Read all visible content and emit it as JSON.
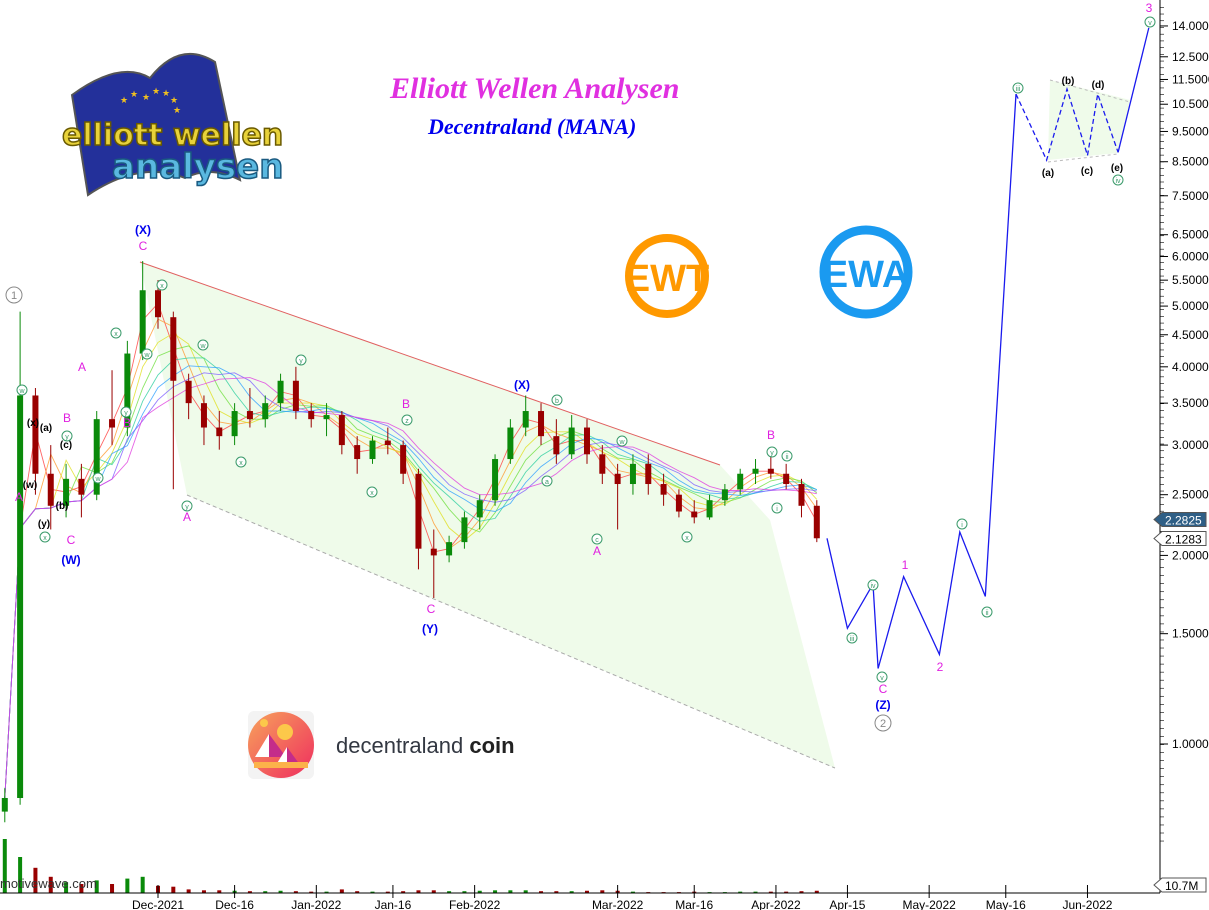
{
  "header": {
    "title": "Elliott Wellen Analysen",
    "subtitle": "Decentraland (MANA)"
  },
  "logos": {
    "brand_logo": "elliott wellen analysen",
    "ewt": "EWT",
    "ewa": "EWA",
    "coin_logo_word1": "decentraland",
    "coin_logo_word2": "coin",
    "watermark": "motivewave.com"
  },
  "colors": {
    "up_candle": "#0a8a0a",
    "down_candle": "#990000",
    "forecast": "#1a1aee",
    "channel_upper": "#e06060",
    "channel_fill": "#effbea",
    "wave_minor": "#e020e0",
    "wave_major": "#0000ee",
    "wave_sub": "#3a9a6a",
    "ewt": "#ff9900",
    "ewa": "#1a9af0"
  },
  "chart_data": {
    "type": "candlestick",
    "title": "Decentraland (MANA)",
    "y_scale": "log",
    "ylim": [
      0.7,
      15
    ],
    "y_ticks": [
      "14.0000",
      "12.5000",
      "11.5000",
      "10.5000",
      "9.5000",
      "8.5000",
      "7.5000",
      "6.5000",
      "6.0000",
      "5.5000",
      "5.0000",
      "4.5000",
      "4.0000",
      "3.5000",
      "3.0000",
      "2.5000",
      "2.0000",
      "1.5000",
      "1.0000"
    ],
    "x_ticks": [
      {
        "label": "Dec-2021",
        "date": "2021-12-01"
      },
      {
        "label": "Dec-16",
        "date": "2021-12-16"
      },
      {
        "label": "Jan-2022",
        "date": "2022-01-01"
      },
      {
        "label": "Jan-16",
        "date": "2022-01-16"
      },
      {
        "label": "Feb-2022",
        "date": "2022-02-01"
      },
      {
        "label": "Mar-2022",
        "date": "2022-03-01"
      },
      {
        "label": "Mar-16",
        "date": "2022-03-16"
      },
      {
        "label": "Apr-2022",
        "date": "2022-04-01"
      },
      {
        "label": "Apr-15",
        "date": "2022-04-15"
      },
      {
        "label": "May-2022",
        "date": "2022-05-01"
      },
      {
        "label": "May-16",
        "date": "2022-05-16"
      },
      {
        "label": "Jun-2022",
        "date": "2022-06-01"
      }
    ],
    "price_tags": {
      "last": "2.2825",
      "reference": "2.1283",
      "volume": "10.7M"
    },
    "candles": [
      [
        "2021-11-01",
        0.78,
        0.85,
        0.75,
        0.82,
        60
      ],
      [
        "2021-11-04",
        0.82,
        4.9,
        0.8,
        3.6,
        40
      ],
      [
        "2021-11-07",
        3.6,
        3.7,
        2.5,
        2.7,
        28
      ],
      [
        "2021-11-10",
        2.7,
        3.0,
        2.2,
        2.4,
        18
      ],
      [
        "2021-11-13",
        2.4,
        2.8,
        2.3,
        2.65,
        12
      ],
      [
        "2021-11-16",
        2.65,
        2.8,
        2.3,
        2.5,
        10
      ],
      [
        "2021-11-19",
        2.5,
        3.4,
        2.45,
        3.3,
        14
      ],
      [
        "2021-11-22",
        3.3,
        3.95,
        3.0,
        3.2,
        10
      ],
      [
        "2021-11-25",
        3.2,
        4.4,
        3.1,
        4.2,
        16
      ],
      [
        "2021-11-28",
        4.2,
        5.9,
        4.1,
        5.3,
        18
      ],
      [
        "2021-12-01",
        5.3,
        5.5,
        4.6,
        4.8,
        8
      ],
      [
        "2021-12-04",
        4.8,
        4.9,
        2.55,
        3.8,
        7
      ],
      [
        "2021-12-07",
        3.8,
        3.9,
        3.3,
        3.5,
        4
      ],
      [
        "2021-12-10",
        3.5,
        3.6,
        3.0,
        3.2,
        3
      ],
      [
        "2021-12-13",
        3.2,
        3.4,
        2.95,
        3.1,
        3
      ],
      [
        "2021-12-16",
        3.1,
        3.5,
        3.0,
        3.4,
        2.5
      ],
      [
        "2021-12-19",
        3.4,
        3.7,
        3.2,
        3.3,
        2
      ],
      [
        "2021-12-22",
        3.3,
        3.6,
        3.2,
        3.5,
        2
      ],
      [
        "2021-12-25",
        3.5,
        3.9,
        3.4,
        3.8,
        2.5
      ],
      [
        "2021-12-28",
        3.8,
        4.0,
        3.3,
        3.4,
        2
      ],
      [
        "2021-12-31",
        3.4,
        3.5,
        3.2,
        3.3,
        1.5
      ],
      [
        "2022-01-03",
        3.3,
        3.5,
        3.1,
        3.35,
        1.5
      ],
      [
        "2022-01-06",
        3.35,
        3.4,
        2.9,
        3.0,
        4
      ],
      [
        "2022-01-09",
        3.0,
        3.1,
        2.7,
        2.85,
        2
      ],
      [
        "2022-01-12",
        2.85,
        3.1,
        2.8,
        3.05,
        1.5
      ],
      [
        "2022-01-15",
        3.05,
        3.2,
        2.9,
        3.0,
        1.5
      ],
      [
        "2022-01-18",
        3.0,
        3.05,
        2.6,
        2.7,
        2
      ],
      [
        "2022-01-21",
        2.7,
        2.75,
        1.9,
        2.05,
        3
      ],
      [
        "2022-01-24",
        2.05,
        2.2,
        1.71,
        2.0,
        3
      ],
      [
        "2022-01-27",
        2.0,
        2.15,
        1.95,
        2.1,
        2
      ],
      [
        "2022-01-30",
        2.1,
        2.35,
        2.05,
        2.3,
        2
      ],
      [
        "2022-02-02",
        2.3,
        2.5,
        2.2,
        2.45,
        2.5
      ],
      [
        "2022-02-05",
        2.45,
        2.9,
        2.4,
        2.85,
        3
      ],
      [
        "2022-02-08",
        2.85,
        3.3,
        2.8,
        3.2,
        3
      ],
      [
        "2022-02-11",
        3.2,
        3.6,
        3.1,
        3.4,
        3
      ],
      [
        "2022-02-14",
        3.4,
        3.5,
        3.0,
        3.1,
        2
      ],
      [
        "2022-02-17",
        3.1,
        3.3,
        2.8,
        2.9,
        2
      ],
      [
        "2022-02-20",
        2.9,
        3.35,
        2.85,
        3.2,
        2
      ],
      [
        "2022-02-23",
        3.2,
        3.3,
        2.8,
        2.9,
        2.5
      ],
      [
        "2022-02-26",
        2.9,
        3.0,
        2.6,
        2.7,
        3
      ],
      [
        "2022-03-01",
        2.7,
        2.8,
        2.2,
        2.6,
        2.5
      ],
      [
        "2022-03-04",
        2.6,
        2.9,
        2.5,
        2.8,
        1.5
      ],
      [
        "2022-03-07",
        2.8,
        2.9,
        2.5,
        2.6,
        1
      ],
      [
        "2022-03-10",
        2.6,
        2.7,
        2.4,
        2.5,
        1
      ],
      [
        "2022-03-13",
        2.5,
        2.55,
        2.3,
        2.35,
        1
      ],
      [
        "2022-03-16",
        2.35,
        2.45,
        2.25,
        2.3,
        1.5
      ],
      [
        "2022-03-19",
        2.3,
        2.5,
        2.28,
        2.45,
        1
      ],
      [
        "2022-03-22",
        2.45,
        2.6,
        2.4,
        2.55,
        1
      ],
      [
        "2022-03-25",
        2.55,
        2.75,
        2.5,
        2.7,
        1.5
      ],
      [
        "2022-03-28",
        2.7,
        2.85,
        2.6,
        2.75,
        1.5
      ],
      [
        "2022-03-31",
        2.75,
        2.9,
        2.65,
        2.7,
        1.5
      ],
      [
        "2022-04-03",
        2.7,
        2.8,
        2.55,
        2.6,
        1.5
      ],
      [
        "2022-04-06",
        2.6,
        2.65,
        2.3,
        2.4,
        2
      ],
      [
        "2022-04-09",
        2.4,
        2.45,
        2.1,
        2.13,
        2.5
      ]
    ],
    "forecast": {
      "solid": [
        [
          "2022-04-11",
          2.13
        ],
        [
          "2022-04-15",
          1.53
        ],
        [
          "2022-04-20",
          1.8
        ],
        [
          "2022-04-21",
          1.32
        ],
        [
          "2022-04-26",
          1.85
        ],
        [
          "2022-05-03",
          1.39
        ],
        [
          "2022-05-07",
          2.18
        ],
        [
          "2022-05-12",
          1.72
        ],
        [
          "2022-05-18",
          10.9
        ]
      ],
      "dashed": [
        [
          "2022-05-18",
          10.9
        ],
        [
          "2022-05-24",
          8.55
        ],
        [
          "2022-05-28",
          11.1
        ],
        [
          "2022-06-01",
          8.7
        ],
        [
          "2022-06-03",
          10.9
        ],
        [
          "2022-06-07",
          8.8
        ]
      ],
      "final": [
        [
          "2022-06-07",
          8.8
        ],
        [
          "2022-06-13",
          13.9
        ]
      ]
    },
    "annotations": [
      {
        "text": "1",
        "kind": "grey-circle"
      },
      {
        "text": "(X)",
        "kind": "major"
      },
      {
        "text": "C",
        "kind": "minor"
      },
      {
        "text": "A",
        "kind": "minor"
      },
      {
        "text": "B",
        "kind": "minor"
      },
      {
        "text": "B",
        "kind": "minor"
      },
      {
        "text": "A",
        "kind": "minor"
      },
      {
        "text": "C",
        "kind": "minor"
      },
      {
        "text": "(W)",
        "kind": "major"
      },
      {
        "text": "(x)",
        "kind": "black"
      },
      {
        "text": "(a)",
        "kind": "black"
      },
      {
        "text": "(w)",
        "kind": "black"
      },
      {
        "text": "(c)",
        "kind": "black"
      },
      {
        "text": "(b)",
        "kind": "black"
      },
      {
        "text": "(y)",
        "kind": "black"
      },
      {
        "text": "w",
        "kind": "sub"
      },
      {
        "text": "x",
        "kind": "sub"
      },
      {
        "text": "y",
        "kind": "sub"
      },
      {
        "text": "w",
        "kind": "sub"
      },
      {
        "text": "x",
        "kind": "sub"
      },
      {
        "text": "y",
        "kind": "sub"
      },
      {
        "text": "w",
        "kind": "sub"
      },
      {
        "text": "x",
        "kind": "sub"
      },
      {
        "text": "w",
        "kind": "sub"
      },
      {
        "text": "y",
        "kind": "sub"
      },
      {
        "text": "x",
        "kind": "sub"
      },
      {
        "text": "y",
        "kind": "sub"
      },
      {
        "text": "x",
        "kind": "sub"
      },
      {
        "text": "z",
        "kind": "sub"
      },
      {
        "text": "a",
        "kind": "sub"
      },
      {
        "text": "b",
        "kind": "sub"
      },
      {
        "text": "c",
        "kind": "sub"
      },
      {
        "text": "w",
        "kind": "sub"
      },
      {
        "text": "x",
        "kind": "sub"
      },
      {
        "text": "y",
        "kind": "sub"
      },
      {
        "text": "ii",
        "kind": "sub"
      },
      {
        "text": "i",
        "kind": "sub"
      },
      {
        "text": "iii",
        "kind": "sub"
      },
      {
        "text": "iv",
        "kind": "sub"
      },
      {
        "text": "v",
        "kind": "sub"
      },
      {
        "text": "i",
        "kind": "sub"
      },
      {
        "text": "ii",
        "kind": "sub"
      },
      {
        "text": "iii",
        "kind": "sub"
      },
      {
        "text": "iv",
        "kind": "sub"
      },
      {
        "text": "v",
        "kind": "sub"
      },
      {
        "text": "A",
        "kind": "minor"
      },
      {
        "text": "B",
        "kind": "minor"
      },
      {
        "text": "C",
        "kind": "minor"
      },
      {
        "text": "A",
        "kind": "minor"
      },
      {
        "text": "B",
        "kind": "minor"
      },
      {
        "text": "C",
        "kind": "minor"
      },
      {
        "text": "1",
        "kind": "minor"
      },
      {
        "text": "2",
        "kind": "minor"
      },
      {
        "text": "3",
        "kind": "minor"
      },
      {
        "text": "(Y)",
        "kind": "major"
      },
      {
        "text": "(X)",
        "kind": "major"
      },
      {
        "text": "(Z)",
        "kind": "major"
      },
      {
        "text": "2",
        "kind": "grey-circle"
      },
      {
        "text": "(a)",
        "kind": "black"
      },
      {
        "text": "(b)",
        "kind": "black"
      },
      {
        "text": "(c)",
        "kind": "black"
      },
      {
        "text": "(d)",
        "kind": "black"
      },
      {
        "text": "(e)",
        "kind": "black"
      }
    ]
  }
}
